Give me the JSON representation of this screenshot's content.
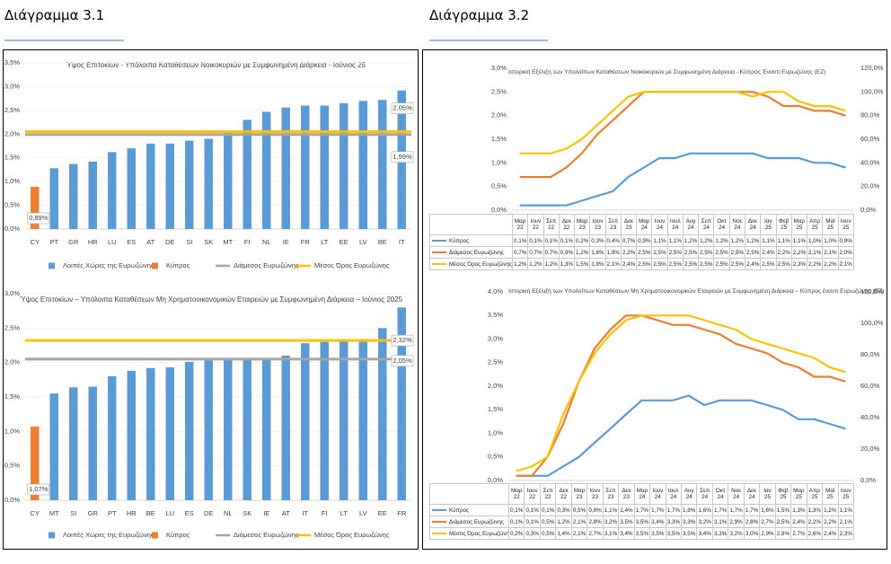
{
  "headings": [
    "Διάγραμμα 3.1",
    "Διάγραμμα 3.2"
  ],
  "chart_data": [
    {
      "type": "bar",
      "title": "Ύψος Επιτοκίων - Υπόλοιπα Καταθέσεων Νοικοκυριών με Συμφωνημένη Διάρκεια - Ιούνιος 25",
      "categories": [
        "CY",
        "PT",
        "GR",
        "HR",
        "LU",
        "ES",
        "AT",
        "DE",
        "SI",
        "SK",
        "MT",
        "FI",
        "NL",
        "IE",
        "FR",
        "LT",
        "EE",
        "LV",
        "BE",
        "IT"
      ],
      "series": [
        {
          "name": "Λοιπές Χώρες της Ευρωζώνης",
          "color": "#5b9bd5",
          "values": [
            null,
            1.28,
            1.37,
            1.42,
            1.62,
            1.7,
            1.8,
            1.8,
            1.86,
            1.9,
            2.05,
            2.3,
            2.47,
            2.56,
            2.6,
            2.6,
            2.65,
            2.7,
            2.72,
            2.92
          ]
        },
        {
          "name": "Κύπρος",
          "color": "#ed7d31",
          "values": [
            0.89,
            null,
            null,
            null,
            null,
            null,
            null,
            null,
            null,
            null,
            null,
            null,
            null,
            null,
            null,
            null,
            null,
            null,
            null,
            null
          ],
          "value_labels": [
            "0,89%",
            null,
            null,
            null,
            null,
            null,
            null,
            null,
            null,
            null,
            null,
            null,
            null,
            null,
            null,
            null,
            null,
            null,
            null,
            null
          ]
        },
        {
          "name": "Διάμεσος Ευρωζώνης",
          "color": "#a5a5a5",
          "type": "line",
          "value": 1.99,
          "value_label": "1,99%"
        },
        {
          "name": "Μέσος Όρος Ευρωζώνης",
          "color": "#ffc000",
          "type": "line",
          "value": 2.05,
          "value_label": "2,05%"
        }
      ],
      "ylim": [
        0,
        3.5
      ],
      "yticks": [
        {
          "value": 0,
          "label": "0,0%"
        },
        {
          "value": 0.5,
          "label": "0,5%"
        },
        {
          "value": 1,
          "label": "1,0%"
        },
        {
          "value": 1.5,
          "label": "1,5%"
        },
        {
          "value": 2,
          "label": "2,0%"
        },
        {
          "value": 2.5,
          "label": "2,5%"
        },
        {
          "value": 3,
          "label": "3,0%"
        },
        {
          "value": 3.5,
          "label": "3,5%"
        }
      ],
      "legend": "bottom"
    },
    {
      "type": "bar",
      "title": "Ύψος Επιτοκίων – Υπόλοιπα Καταθέσεων Μη Χρηματοοικονομικών Εταιρειών με Συμφωνημένη Διάρκεια – Ιούνιος 2025",
      "categories": [
        "CY",
        "MT",
        "SI",
        "GR",
        "PT",
        "HR",
        "BE",
        "LU",
        "ES",
        "DE",
        "NL",
        "SK",
        "IE",
        "AT",
        "IT",
        "FI",
        "LT",
        "LV",
        "EE",
        "FR"
      ],
      "series": [
        {
          "name": "Λοιπές Χώρες της Ευρωζώνης",
          "color": "#5b9bd5",
          "values": [
            null,
            1.55,
            1.64,
            1.65,
            1.8,
            1.88,
            1.92,
            1.93,
            2.01,
            2.03,
            2.04,
            2.04,
            2.05,
            2.1,
            2.28,
            2.3,
            2.31,
            2.34,
            2.5,
            2.8
          ]
        },
        {
          "name": "Κύπρος",
          "color": "#ed7d31",
          "values": [
            1.07,
            null,
            null,
            null,
            null,
            null,
            null,
            null,
            null,
            null,
            null,
            null,
            null,
            null,
            null,
            null,
            null,
            null,
            null,
            null
          ],
          "value_labels": [
            "1,07%",
            null,
            null,
            null,
            null,
            null,
            null,
            null,
            null,
            null,
            null,
            null,
            null,
            null,
            null,
            null,
            null,
            null,
            null,
            null
          ]
        },
        {
          "name": "Διάμεσος Ευρωζώνης",
          "color": "#a5a5a5",
          "type": "line",
          "value": 2.05,
          "value_label": "2,05%"
        },
        {
          "name": "Μέσος Όρος Ευρωζώνης",
          "color": "#ffc000",
          "type": "line",
          "value": 2.32,
          "value_label": "2,32%"
        }
      ],
      "ylim": [
        0,
        3.0
      ],
      "yticks": [
        {
          "value": 0,
          "label": "0,0%"
        },
        {
          "value": 0.5,
          "label": "0,5%"
        },
        {
          "value": 1,
          "label": "1,0%"
        },
        {
          "value": 1.5,
          "label": "1,5%"
        },
        {
          "value": 2,
          "label": "2,0%"
        },
        {
          "value": 2.5,
          "label": "2,5%"
        },
        {
          "value": 3,
          "label": "3,0%"
        }
      ],
      "legend": "bottom"
    },
    {
      "type": "line",
      "title": "Ιστορική Εξέλιξη των Υπολοίπων Καταθέσεων Νοικοκυριών με Συμφωνημένη Διάρκεια - Κύπρος Έναντι Ευρωζώνης (EZ)",
      "categories": [
        "Μαρ 22",
        "Ιουν 22",
        "Σεπ 22",
        "Δεκ 22",
        "Μαρ 23",
        "Ιουν 23",
        "Σεπ 23",
        "Δεκ 23",
        "Μαρ 24",
        "Ιουν 24",
        "Ιουλ 24",
        "Αυγ 24",
        "Σεπ 24",
        "Οκτ 24",
        "Νοε 24",
        "Δεκ 24",
        "Ιαν 25",
        "Φεβ 25",
        "Μαρ 25",
        "Απρ 25",
        "Μαϊ 25",
        "Ιουν 25"
      ],
      "series": [
        {
          "name": "Κύπρος",
          "color": "#5b9bd5",
          "values": [
            0.1,
            0.1,
            0.1,
            0.1,
            0.2,
            0.3,
            0.4,
            0.7,
            0.9,
            1.1,
            1.1,
            1.2,
            1.2,
            1.2,
            1.2,
            1.2,
            1.1,
            1.1,
            1.1,
            1.0,
            1.0,
            0.9
          ],
          "value_labels": [
            "0,1%",
            "0,1%",
            "0,1%",
            "0,1%",
            "0,2%",
            "0,3%",
            "0,4%",
            "0,7%",
            "0,9%",
            "1,1%",
            "1,1%",
            "1,2%",
            "1,2%",
            "1,2%",
            "1,2%",
            "1,2%",
            "1,1%",
            "1,1%",
            "1,1%",
            "1,0%",
            "1,0%",
            "0,9%"
          ]
        },
        {
          "name": "Διάμεσος Ευρωζώνης",
          "color": "#ed7d31",
          "values": [
            0.7,
            0.7,
            0.7,
            0.9,
            1.2,
            1.6,
            1.9,
            2.2,
            2.5,
            2.5,
            2.5,
            2.5,
            2.5,
            2.5,
            2.5,
            2.5,
            2.4,
            2.2,
            2.2,
            2.1,
            2.1,
            2.0
          ],
          "value_labels": [
            "0,7%",
            "0,7%",
            "0,7%",
            "0,9%",
            "1,2%",
            "1,6%",
            "1,9%",
            "2,2%",
            "2,5%",
            "2,5%",
            "2,5%",
            "2,5%",
            "2,5%",
            "2,5%",
            "2,5%",
            "2,5%",
            "2,4%",
            "2,2%",
            "2,2%",
            "2,1%",
            "2,1%",
            "2,0%"
          ]
        },
        {
          "name": "Μέσος Όρος Ευρωζώνης",
          "color": "#ffc000",
          "values": [
            1.2,
            1.2,
            1.2,
            1.3,
            1.5,
            1.8,
            2.1,
            2.4,
            2.5,
            2.5,
            2.5,
            2.5,
            2.5,
            2.5,
            2.5,
            2.4,
            2.5,
            2.5,
            2.3,
            2.2,
            2.2,
            2.1
          ],
          "value_labels": [
            "1,2%",
            "1,2%",
            "1,2%",
            "1,3%",
            "1,5%",
            "1,8%",
            "2,1%",
            "2,4%",
            "2,5%",
            "2,5%",
            "2,5%",
            "2,5%",
            "2,5%",
            "2,5%",
            "2,5%",
            "2,4%",
            "2,5%",
            "2,5%",
            "2,3%",
            "2,2%",
            "2,2%",
            "2,1%"
          ]
        }
      ],
      "ylim": [
        0,
        3.0
      ],
      "yticks": [
        {
          "value": 0,
          "label": "0,0%"
        },
        {
          "value": 0.5,
          "label": "0,5%"
        },
        {
          "value": 1,
          "label": "1,0%"
        },
        {
          "value": 1.5,
          "label": "1,5%"
        },
        {
          "value": 2,
          "label": "2,0%"
        },
        {
          "value": 2.5,
          "label": "2,5%"
        },
        {
          "value": 3,
          "label": "3,0%"
        }
      ],
      "y2lim": [
        0,
        120
      ],
      "y2ticks": [
        {
          "value": 0,
          "label": "0,0%"
        },
        {
          "value": 20,
          "label": "20,0%"
        },
        {
          "value": 40,
          "label": "40,0%"
        },
        {
          "value": 60,
          "label": "60,0%"
        },
        {
          "value": 80,
          "label": "80,0%"
        },
        {
          "value": 100,
          "label": "100,0%"
        },
        {
          "value": 120,
          "label": "120,0%"
        }
      ]
    },
    {
      "type": "line",
      "title": "Ιστορική Εξέλιξη των Υπολοίπων Καταθέσεων Μη Χρηματοοικονομικών Εταιρειών με Συμφωνημένη Διάρκεια – Κύπρος έναντι Ευρωζώνης (EZ)",
      "categories": [
        "Μαρ 22",
        "Ιουν 22",
        "Σεπ 22",
        "Δεκ 22",
        "Μαρ 23",
        "Ιουν 23",
        "Σεπ 23",
        "Δεκ 23",
        "Μαρ 24",
        "Ιουν 24",
        "Ιουλ 24",
        "Αυγ 24",
        "Σεπ 24",
        "Οκτ 24",
        "Νοε 24",
        "Δεκ 24",
        "Ιαν 25",
        "Φεβ 25",
        "Μαρ 25",
        "Απρ 25",
        "Μαϊ 25",
        "Ιουν 25"
      ],
      "series": [
        {
          "name": "Κύπρος",
          "color": "#5b9bd5",
          "values": [
            0.1,
            0.1,
            0.1,
            0.3,
            0.5,
            0.8,
            1.1,
            1.4,
            1.7,
            1.7,
            1.7,
            1.8,
            1.6,
            1.7,
            1.7,
            1.7,
            1.6,
            1.5,
            1.3,
            1.3,
            1.2,
            1.1
          ],
          "value_labels": [
            "0,1%",
            "0,1%",
            "0,1%",
            "0,3%",
            "0,5%",
            "0,8%",
            "1,1%",
            "1,4%",
            "1,7%",
            "1,7%",
            "1,7%",
            "1,8%",
            "1,6%",
            "1,7%",
            "1,7%",
            "1,7%",
            "1,6%",
            "1,5%",
            "1,3%",
            "1,3%",
            "1,2%",
            "1,1%"
          ]
        },
        {
          "name": "Διάμεσος Ευρωζώνης",
          "color": "#ed7d31",
          "values": [
            0.1,
            0.1,
            0.5,
            1.2,
            2.1,
            2.8,
            3.2,
            3.5,
            3.5,
            3.4,
            3.3,
            3.3,
            3.2,
            3.1,
            2.9,
            2.8,
            2.7,
            2.5,
            2.4,
            2.2,
            2.2,
            2.1
          ],
          "value_labels": [
            "0,1%",
            "0,1%",
            "0,5%",
            "1,2%",
            "2,1%",
            "2,8%",
            "3,2%",
            "3,5%",
            "3,5%",
            "3,4%",
            "3,3%",
            "3,3%",
            "3,2%",
            "3,1%",
            "2,9%",
            "2,8%",
            "2,7%",
            "2,5%",
            "2,4%",
            "2,2%",
            "2,2%",
            "2,1%"
          ]
        },
        {
          "name": "Μέσος Όρος Ευρωζώνης",
          "color": "#ffc000",
          "values": [
            0.2,
            0.3,
            0.5,
            1.4,
            2.1,
            2.7,
            3.1,
            3.4,
            3.5,
            3.5,
            3.5,
            3.5,
            3.4,
            3.3,
            3.2,
            3.0,
            2.9,
            2.8,
            2.7,
            2.6,
            2.4,
            2.3
          ],
          "value_labels": [
            "0,2%",
            "0,3%",
            "0,5%",
            "1,4%",
            "2,1%",
            "2,7%",
            "3,1%",
            "3,4%",
            "3,5%",
            "3,5%",
            "3,5%",
            "3,5%",
            "3,4%",
            "3,3%",
            "3,2%",
            "3,0%",
            "2,9%",
            "2,8%",
            "2,7%",
            "2,6%",
            "2,4%",
            "2,3%"
          ]
        }
      ],
      "ylim": [
        0,
        4.0
      ],
      "yticks": [
        {
          "value": 0,
          "label": "0,0%"
        },
        {
          "value": 0.5,
          "label": "0,5%"
        },
        {
          "value": 1,
          "label": "1,0%"
        },
        {
          "value": 1.5,
          "label": "1,5%"
        },
        {
          "value": 2,
          "label": "2,0%"
        },
        {
          "value": 2.5,
          "label": "2,5%"
        },
        {
          "value": 3,
          "label": "3,0%"
        },
        {
          "value": 3.5,
          "label": "3,5%"
        },
        {
          "value": 4,
          "label": "4,0%"
        }
      ],
      "y2lim": [
        0,
        120
      ],
      "y2ticks": [
        {
          "value": 0,
          "label": "0,0%"
        },
        {
          "value": 20,
          "label": "20,0%"
        },
        {
          "value": 40,
          "label": "40,0%"
        },
        {
          "value": 60,
          "label": "60,0%"
        },
        {
          "value": 80,
          "label": "80,0%"
        },
        {
          "value": 100,
          "label": "100,0%"
        },
        {
          "value": 120,
          "label": "120,0%"
        }
      ]
    }
  ]
}
